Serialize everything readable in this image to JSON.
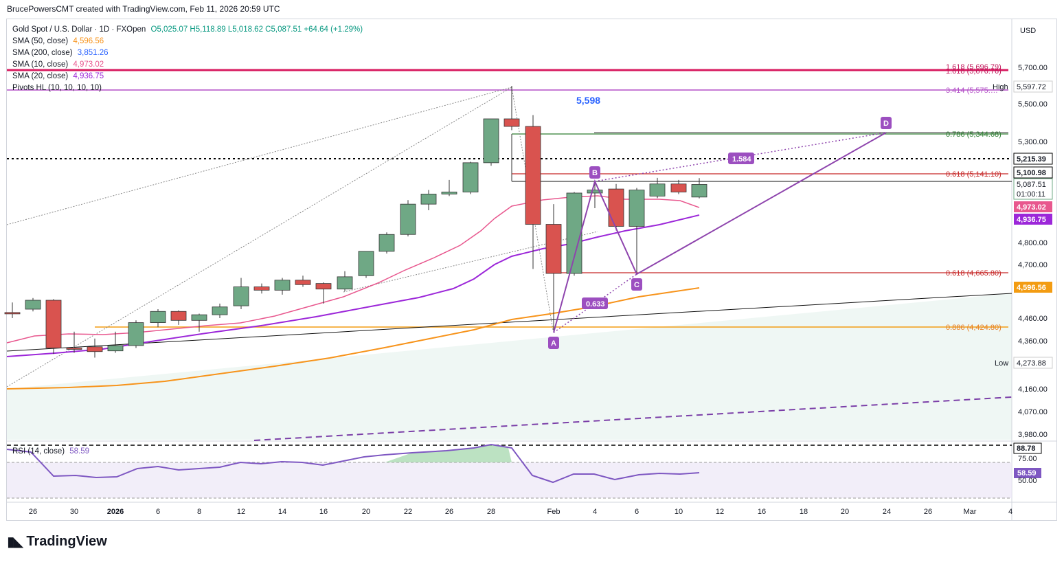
{
  "caption": "BrucePowersCMT created with TradingView.com, Feb 11, 2026 20:59 UTC",
  "legend": {
    "symbol": "Gold Spot / U.S. Dollar · 1D · FXOpen",
    "ohlc": "O5,025.07  H5,118.89  L5,018.62  C5,087.51  +64.64 (+1.29%)",
    "sma50": {
      "label": "SMA (50, close)",
      "value": "4,596.56",
      "color": "#f7931a"
    },
    "sma200": {
      "label": "SMA (200, close)",
      "value": "3,851.26",
      "color": "#2962ff"
    },
    "sma10": {
      "label": "SMA (10, close)",
      "value": "4,973.02",
      "color": "#e8578e"
    },
    "sma20": {
      "label": "SMA (20, close)",
      "value": "4,936.75",
      "color": "#9c27d9"
    },
    "pivots": {
      "label": "Pivots HL (10, 10, 10, 10)"
    }
  },
  "rsi_legend": {
    "label": "RSI (14, close)",
    "value": "58.59"
  },
  "currency": "USD",
  "logo": "TradingView",
  "price_axis": [
    "5,700.00",
    "5,500.00",
    "5,300.00",
    "4,800.00",
    "4,700.00",
    "4,460.00",
    "4,360.00",
    "4,160.00",
    "4,070.00",
    "3,980.00"
  ],
  "price_tags": {
    "high_label": "High",
    "high_value": "5,597.72",
    "low_label": "Low",
    "low_value": "4,273.88",
    "dotted_level": "5,215.39",
    "current_black": "5,100.98",
    "last_price": "5,087.51",
    "countdown": "01:00:11",
    "sma10": "4,973.02",
    "sma20": "4,936.75",
    "sma50": "4,596.56"
  },
  "rsi_axis": {
    "top": "88.78",
    "mid": "75.00",
    "value": "58.59",
    "low": "50.00"
  },
  "fib_labels": {
    "f1618a": "1.618 (5,696.79)",
    "f1618b": "1.618 (5,676.76)",
    "f3414": "3.414 (5,575.…",
    "f786": "0.786 (5,344.68)",
    "f0618_top": "0.618 (5,141.10)",
    "f0618_bot": "0.618 (4,665.80)",
    "f0886": "0.886 (4,424.80)"
  },
  "annotations": {
    "peak": "5,598",
    "ratio1": "1.584",
    "ratio2": "0.633",
    "A": "A",
    "B": "B",
    "C": "C",
    "D": "D"
  },
  "time_axis": [
    "26",
    "30",
    "2026",
    "6",
    "8",
    "12",
    "14",
    "16",
    "20",
    "22",
    "26",
    "28",
    "Feb",
    "4",
    "6",
    "10",
    "12",
    "16",
    "18",
    "20",
    "24",
    "26",
    "Mar",
    "4"
  ],
  "colors": {
    "up": "#6fa885",
    "down": "#d9534f",
    "fib_red": "#c62828",
    "magenta": "#c2185b",
    "purple": "#9c4fc0",
    "rsi_line": "#7e57c2"
  },
  "chart_data": {
    "type": "candlestick",
    "interval": "1D",
    "ohlc_last": {
      "open": 5025.07,
      "high": 5118.89,
      "low": 5018.62,
      "close": 5087.51
    },
    "candles": [
      {
        "o": 4485,
        "h": 4530,
        "l": 4460,
        "c": 4480
      },
      {
        "o": 4500,
        "h": 4550,
        "l": 4490,
        "c": 4540
      },
      {
        "o": 4540,
        "h": 4545,
        "l": 4305,
        "c": 4330
      },
      {
        "o": 4330,
        "h": 4400,
        "l": 4310,
        "c": 4325
      },
      {
        "o": 4335,
        "h": 4370,
        "l": 4290,
        "c": 4315
      },
      {
        "o": 4318,
        "h": 4400,
        "l": 4310,
        "c": 4340
      },
      {
        "o": 4340,
        "h": 4450,
        "l": 4330,
        "c": 4440
      },
      {
        "o": 4440,
        "h": 4500,
        "l": 4420,
        "c": 4490
      },
      {
        "o": 4490,
        "h": 4495,
        "l": 4430,
        "c": 4450
      },
      {
        "o": 4450,
        "h": 4480,
        "l": 4400,
        "c": 4475
      },
      {
        "o": 4475,
        "h": 4525,
        "l": 4460,
        "c": 4510
      },
      {
        "o": 4515,
        "h": 4640,
        "l": 4500,
        "c": 4600
      },
      {
        "o": 4600,
        "h": 4615,
        "l": 4570,
        "c": 4585
      },
      {
        "o": 4585,
        "h": 4640,
        "l": 4565,
        "c": 4630
      },
      {
        "o": 4630,
        "h": 4650,
        "l": 4600,
        "c": 4610
      },
      {
        "o": 4615,
        "h": 4620,
        "l": 4525,
        "c": 4590
      },
      {
        "o": 4590,
        "h": 4670,
        "l": 4580,
        "c": 4645
      },
      {
        "o": 4650,
        "h": 4760,
        "l": 4640,
        "c": 4760
      },
      {
        "o": 4760,
        "h": 4850,
        "l": 4750,
        "c": 4840
      },
      {
        "o": 4840,
        "h": 5010,
        "l": 4830,
        "c": 4990
      },
      {
        "o": 4990,
        "h": 5060,
        "l": 4960,
        "c": 5040
      },
      {
        "o": 5040,
        "h": 5110,
        "l": 5030,
        "c": 5050
      },
      {
        "o": 5050,
        "h": 5200,
        "l": 5040,
        "c": 5195
      },
      {
        "o": 5195,
        "h": 5420,
        "l": 5180,
        "c": 5420
      },
      {
        "o": 5420,
        "h": 5598,
        "l": 5360,
        "c": 5380
      },
      {
        "o": 5380,
        "h": 5440,
        "l": 4680,
        "c": 4890
      },
      {
        "o": 4890,
        "h": 4990,
        "l": 4405,
        "c": 4660
      },
      {
        "o": 4660,
        "h": 5050,
        "l": 4650,
        "c": 5045
      },
      {
        "o": 5045,
        "h": 5100,
        "l": 4970,
        "c": 5060
      },
      {
        "o": 5065,
        "h": 5090,
        "l": 4860,
        "c": 4880
      },
      {
        "o": 4880,
        "h": 5070,
        "l": 4665,
        "c": 5060
      },
      {
        "o": 5030,
        "h": 5120,
        "l": 5020,
        "c": 5090
      },
      {
        "o": 5090,
        "h": 5110,
        "l": 5040,
        "c": 5050
      },
      {
        "o": 5025.07,
        "h": 5118.89,
        "l": 5018.62,
        "c": 5087.51
      }
    ],
    "fib_levels": [
      {
        "ratio": "1.618",
        "price": 5696.79
      },
      {
        "ratio": "3.414",
        "price": 5575
      },
      {
        "ratio": "0.786",
        "price": 5344.68
      },
      {
        "ratio": "0.618",
        "price": 5141.1
      },
      {
        "ratio": "0.618",
        "price": 4665.8
      },
      {
        "ratio": "0.886",
        "price": 4424.8
      }
    ],
    "pattern_points": {
      "A": 4405,
      "B": 5100,
      "C": 4665,
      "D": 5344
    }
  }
}
